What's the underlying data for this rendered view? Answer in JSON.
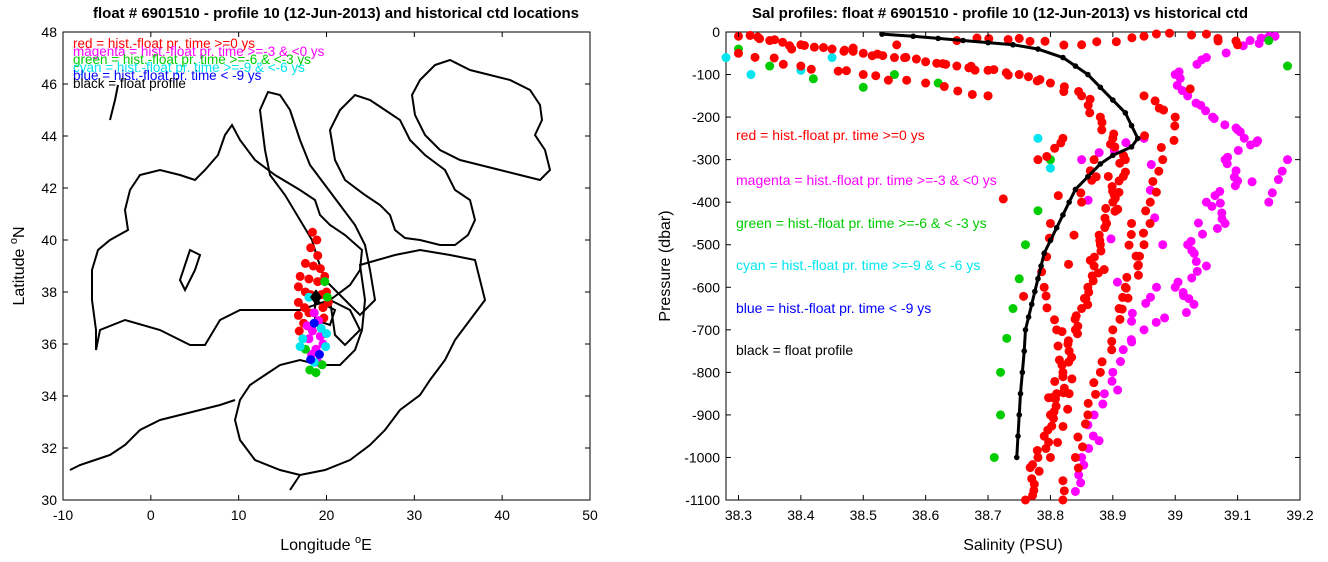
{
  "chart_data": [
    {
      "type": "scatter",
      "title": "float # 6901510 - profile 10 (12-Jun-2013) and historical ctd locations",
      "xlabel": "Longitude",
      "xlabel_sup": "o",
      "xlabel_suffix": "E",
      "ylabel": "Latitude",
      "ylabel_sup": "o",
      "ylabel_suffix": "N",
      "xlim": [
        -10,
        50
      ],
      "ylim": [
        30,
        48
      ],
      "xticks": [
        "-10",
        "0",
        "10",
        "20",
        "30",
        "40",
        "50"
      ],
      "yticks": [
        "30",
        "32",
        "34",
        "36",
        "38",
        "40",
        "42",
        "44",
        "46",
        "48"
      ],
      "legend": [
        {
          "text": "red = hist.-float pr. time >=0 ys",
          "color": "#ff0000"
        },
        {
          "text": "magenta = hist.-float pr. time >=-3 & <0 ys",
          "color": "#ff00ff"
        },
        {
          "text": "green = hist.-float pr. time >=-6 & <-3 ys",
          "color": "#00cc00"
        },
        {
          "text": "cyan = hist.-float pr. time >=-9 & <-6 ys",
          "color": "#00e5ee"
        },
        {
          "text": "blue = hist.-float pr. time < -9 ys",
          "color": "#0000ff"
        },
        {
          "text": "black = float profile",
          "color": "#000000"
        }
      ],
      "float_location": {
        "lon": 18.8,
        "lat": 37.8
      },
      "series": [
        {
          "name": "red",
          "color": "#ff0000",
          "points": [
            [
              18.4,
              40.3
            ],
            [
              18.9,
              40.0
            ],
            [
              18.2,
              39.7
            ],
            [
              19.0,
              39.4
            ],
            [
              17.6,
              39.1
            ],
            [
              18.5,
              39.0
            ],
            [
              19.3,
              38.9
            ],
            [
              17.0,
              38.6
            ],
            [
              18.0,
              38.5
            ],
            [
              19.0,
              38.4
            ],
            [
              19.8,
              38.6
            ],
            [
              16.8,
              38.2
            ],
            [
              17.6,
              38.0
            ],
            [
              18.2,
              37.9
            ],
            [
              19.4,
              37.9
            ],
            [
              20.0,
              38.0
            ],
            [
              16.8,
              37.6
            ],
            [
              17.5,
              37.4
            ],
            [
              19.6,
              37.4
            ],
            [
              16.8,
              37.1
            ],
            [
              17.4,
              36.8
            ],
            [
              16.9,
              36.5
            ],
            [
              18.3,
              36.6
            ],
            [
              19.7,
              37.0
            ],
            [
              20.2,
              37.6
            ],
            [
              18.0,
              37.2
            ]
          ]
        },
        {
          "name": "magenta",
          "color": "#ff00ff",
          "points": [
            [
              18.6,
              37.2
            ],
            [
              19.1,
              36.9
            ],
            [
              18.4,
              36.5
            ],
            [
              19.3,
              36.3
            ],
            [
              18.0,
              36.2
            ],
            [
              18.8,
              35.8
            ],
            [
              19.6,
              36.0
            ],
            [
              18.3,
              35.6
            ],
            [
              19.0,
              35.3
            ],
            [
              17.8,
              36.7
            ]
          ]
        },
        {
          "name": "green",
          "color": "#00cc00",
          "points": [
            [
              19.8,
              38.4
            ],
            [
              20.1,
              37.8
            ],
            [
              18.1,
              35.0
            ],
            [
              18.8,
              34.9
            ],
            [
              19.5,
              35.2
            ],
            [
              17.6,
              35.8
            ]
          ]
        },
        {
          "name": "cyan",
          "color": "#00e5ee",
          "points": [
            [
              18.0,
              37.8
            ],
            [
              17.3,
              36.2
            ],
            [
              19.9,
              35.9
            ],
            [
              19.4,
              36.6
            ],
            [
              18.6,
              35.3
            ],
            [
              17.0,
              35.9
            ],
            [
              20.0,
              36.4
            ]
          ]
        },
        {
          "name": "blue",
          "color": "#0000ff",
          "points": [
            [
              18.6,
              36.8
            ],
            [
              19.2,
              35.6
            ],
            [
              18.2,
              35.4
            ]
          ]
        }
      ]
    },
    {
      "type": "scatter",
      "title": "Sal profiles: float # 6901510 - profile 10 (12-Jun-2013) vs historical ctd",
      "xlabel": "Salinity (PSU)",
      "ylabel": "Pressure (dbar)",
      "xlim": [
        38.28,
        39.2
      ],
      "ylim": [
        -1100,
        0
      ],
      "xticks": [
        "38.3",
        "38.4",
        "38.5",
        "38.6",
        "38.7",
        "38.8",
        "38.9",
        "39",
        "39.1",
        "39.2"
      ],
      "yticks": [
        "0",
        "-100",
        "-200",
        "-300",
        "-400",
        "-500",
        "-600",
        "-700",
        "-800",
        "-900",
        "-1000",
        "-1100"
      ],
      "legend": [
        {
          "text": "red = hist.-float pr. time >=0 ys",
          "color": "#ff0000"
        },
        {
          "text": "magenta = hist.-float pr. time >=-3 & <0 ys",
          "color": "#ff00ff"
        },
        {
          "text": "green = hist.-float pr. time >=-6 & < -3 ys",
          "color": "#00cc00"
        },
        {
          "text": "cyan = hist.-float pr. time >=-9 & < -6 ys",
          "color": "#00e5ee"
        },
        {
          "text": "blue = hist.-float pr. time < -9 ys",
          "color": "#0000ff"
        },
        {
          "text": "black = float profile",
          "color": "#000000"
        }
      ],
      "series": [
        {
          "name": "magenta",
          "color": "#ff00ff",
          "points": [
            [
              39.12,
              -20
            ],
            [
              39.16,
              -10
            ],
            [
              39.05,
              -60
            ],
            [
              39.0,
              -100
            ],
            [
              39.02,
              -150
            ],
            [
              39.06,
              -200
            ],
            [
              39.1,
              -230
            ],
            [
              39.13,
              -260
            ],
            [
              39.08,
              -300
            ],
            [
              39.1,
              -350
            ],
            [
              39.05,
              -400
            ],
            [
              39.08,
              -450
            ],
            [
              39.02,
              -500
            ],
            [
              39.05,
              -550
            ],
            [
              39.0,
              -600
            ],
            [
              39.03,
              -640
            ],
            [
              38.95,
              -700
            ],
            [
              38.9,
              -800
            ],
            [
              38.87,
              -900
            ],
            [
              38.85,
              -1000
            ],
            [
              38.84,
              -1080
            ],
            [
              38.97,
              -600
            ],
            [
              38.93,
              -680
            ],
            [
              38.85,
              -300
            ],
            [
              38.95,
              -250
            ],
            [
              38.98,
              -500
            ],
            [
              39.18,
              -300
            ],
            [
              39.15,
              -400
            ]
          ]
        },
        {
          "name": "green",
          "color": "#00cc00",
          "points": [
            [
              38.3,
              -40
            ],
            [
              38.35,
              -80
            ],
            [
              38.42,
              -110
            ],
            [
              38.5,
              -130
            ],
            [
              38.55,
              -100
            ],
            [
              38.62,
              -120
            ],
            [
              38.7,
              -150
            ],
            [
              38.8,
              -300
            ],
            [
              38.78,
              -420
            ],
            [
              38.76,
              -500
            ],
            [
              38.75,
              -580
            ],
            [
              38.74,
              -650
            ],
            [
              38.73,
              -720
            ],
            [
              38.72,
              -800
            ],
            [
              38.72,
              -900
            ],
            [
              38.71,
              -1000
            ],
            [
              39.15,
              -20
            ],
            [
              39.18,
              -80
            ]
          ]
        },
        {
          "name": "cyan",
          "color": "#00e5ee",
          "points": [
            [
              38.28,
              -60
            ],
            [
              38.32,
              -100
            ],
            [
              38.4,
              -90
            ],
            [
              38.45,
              -60
            ],
            [
              38.78,
              -250
            ],
            [
              38.8,
              -320
            ]
          ]
        },
        {
          "name": "red",
          "color": "#ff0000",
          "points": [
            [
              38.3,
              -10
            ],
            [
              38.35,
              -20
            ],
            [
              38.4,
              -30
            ],
            [
              38.45,
              -40
            ],
            [
              38.5,
              -50
            ],
            [
              38.55,
              -60
            ],
            [
              38.6,
              -70
            ],
            [
              38.65,
              -80
            ],
            [
              38.7,
              -90
            ],
            [
              38.75,
              -100
            ],
            [
              38.8,
              -120
            ],
            [
              38.85,
              -150
            ],
            [
              38.88,
              -200
            ],
            [
              38.9,
              -250
            ],
            [
              38.92,
              -300
            ],
            [
              38.91,
              -350
            ],
            [
              38.9,
              -400
            ],
            [
              38.89,
              -450
            ],
            [
              38.88,
              -500
            ],
            [
              38.87,
              -550
            ],
            [
              38.86,
              -600
            ],
            [
              38.85,
              -650
            ],
            [
              38.84,
              -700
            ],
            [
              38.83,
              -750
            ],
            [
              38.82,
              -800
            ],
            [
              38.81,
              -850
            ],
            [
              38.8,
              -900
            ],
            [
              38.79,
              -950
            ],
            [
              38.78,
              -1000
            ],
            [
              38.77,
              -1050
            ],
            [
              38.76,
              -1100
            ],
            [
              38.95,
              -150
            ],
            [
              39.0,
              -200
            ],
            [
              38.98,
              -300
            ],
            [
              38.96,
              -400
            ],
            [
              38.95,
              -500
            ],
            [
              38.92,
              -600
            ],
            [
              38.9,
              -700
            ],
            [
              38.88,
              -800
            ],
            [
              38.86,
              -900
            ],
            [
              38.84,
              -1000
            ],
            [
              38.82,
              -1100
            ],
            [
              38.7,
              -150
            ],
            [
              38.6,
              -120
            ],
            [
              38.5,
              -100
            ],
            [
              38.4,
              -80
            ],
            [
              38.3,
              -50
            ],
            [
              38.65,
              -20
            ],
            [
              38.75,
              -15
            ],
            [
              38.85,
              -30
            ],
            [
              38.95,
              -10
            ],
            [
              39.05,
              -5
            ],
            [
              39.1,
              -30
            ],
            [
              38.8,
              -450
            ],
            [
              38.79,
              -600
            ],
            [
              38.81,
              -700
            ],
            [
              38.83,
              -850
            ],
            [
              38.8,
              -1000
            ],
            [
              38.85,
              -400
            ],
            [
              38.87,
              -300
            ],
            [
              38.93,
              -450
            ],
            [
              38.94,
              -550
            ],
            [
              38.91,
              -650
            ],
            [
              38.78,
              -300
            ],
            [
              38.82,
              -250
            ]
          ]
        },
        {
          "name": "black",
          "color": "#000000",
          "points": [
            [
              38.53,
              -5
            ],
            [
              38.58,
              -10
            ],
            [
              38.62,
              -15
            ],
            [
              38.66,
              -20
            ],
            [
              38.7,
              -25
            ],
            [
              38.74,
              -30
            ],
            [
              38.78,
              -40
            ],
            [
              38.82,
              -60
            ],
            [
              38.84,
              -80
            ],
            [
              38.86,
              -100
            ],
            [
              38.88,
              -130
            ],
            [
              38.9,
              -160
            ],
            [
              38.92,
              -190
            ],
            [
              38.93,
              -220
            ],
            [
              38.94,
              -250
            ],
            [
              38.93,
              -270
            ],
            [
              38.9,
              -290
            ],
            [
              38.88,
              -310
            ],
            [
              38.86,
              -340
            ],
            [
              38.84,
              -370
            ],
            [
              38.83,
              -400
            ],
            [
              38.82,
              -430
            ],
            [
              38.81,
              -460
            ],
            [
              38.8,
              -490
            ],
            [
              38.79,
              -520
            ],
            [
              38.785,
              -550
            ],
            [
              38.78,
              -580
            ],
            [
              38.775,
              -610
            ],
            [
              38.77,
              -640
            ],
            [
              38.765,
              -670
            ],
            [
              38.76,
              -700
            ],
            [
              38.758,
              -750
            ],
            [
              38.755,
              -800
            ],
            [
              38.752,
              -850
            ],
            [
              38.75,
              -900
            ],
            [
              38.748,
              -950
            ],
            [
              38.746,
              -1000
            ]
          ]
        }
      ]
    }
  ]
}
